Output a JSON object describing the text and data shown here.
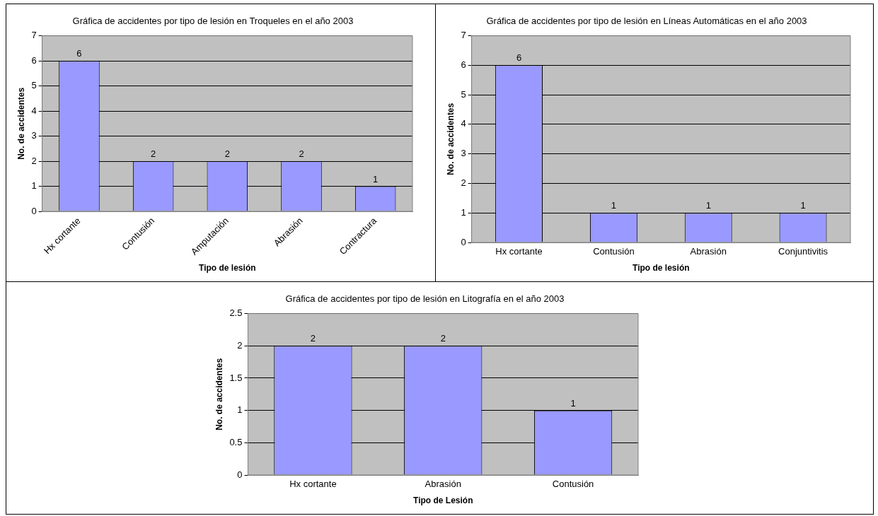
{
  "chart_data": [
    {
      "type": "bar",
      "title": "Gráfica de accidentes por tipo de lesión en Troqueles en el año 2003",
      "xlabel": "Tipo de lesión",
      "ylabel": "No. de accidentes",
      "categories": [
        "Hx cortante",
        "Contusión",
        "Amputación",
        "Abrasión",
        "Contractura"
      ],
      "values": [
        6,
        2,
        2,
        2,
        1
      ],
      "color": "#9999ff",
      "ylim": [
        0,
        7
      ],
      "yticks": [
        0,
        1,
        2,
        3,
        4,
        5,
        6,
        7
      ],
      "grid": "y",
      "data_labels": true,
      "legend": false
    },
    {
      "type": "bar",
      "title": "Gráfica de accidentes por tipo de lesión en Líneas Automáticas en el año 2003",
      "xlabel": "Tipo de lesión",
      "ylabel": "No. de accidentes",
      "categories": [
        "Hx cortante",
        "Contusión",
        "Abrasión",
        "Conjuntivitis"
      ],
      "values": [
        6,
        1,
        1,
        1
      ],
      "color": "#9999ff",
      "ylim": [
        0,
        7
      ],
      "yticks": [
        0,
        1,
        2,
        3,
        4,
        5,
        6,
        7
      ],
      "grid": "y",
      "data_labels": true,
      "legend": false
    },
    {
      "type": "bar",
      "title": "Gráfica de accidentes por tipo de lesión en Litografía en el año 2003",
      "xlabel": "Tipo de Lesión",
      "ylabel": "No. de accidentes",
      "categories": [
        "Hx cortante",
        "Abrasión",
        "Contusión"
      ],
      "values": [
        2,
        2,
        1
      ],
      "color": "#9999ff",
      "ylim": [
        0,
        2.5
      ],
      "yticks": [
        0,
        0.5,
        1,
        1.5,
        2,
        2.5
      ],
      "grid": "y",
      "data_labels": true,
      "legend": false
    }
  ]
}
